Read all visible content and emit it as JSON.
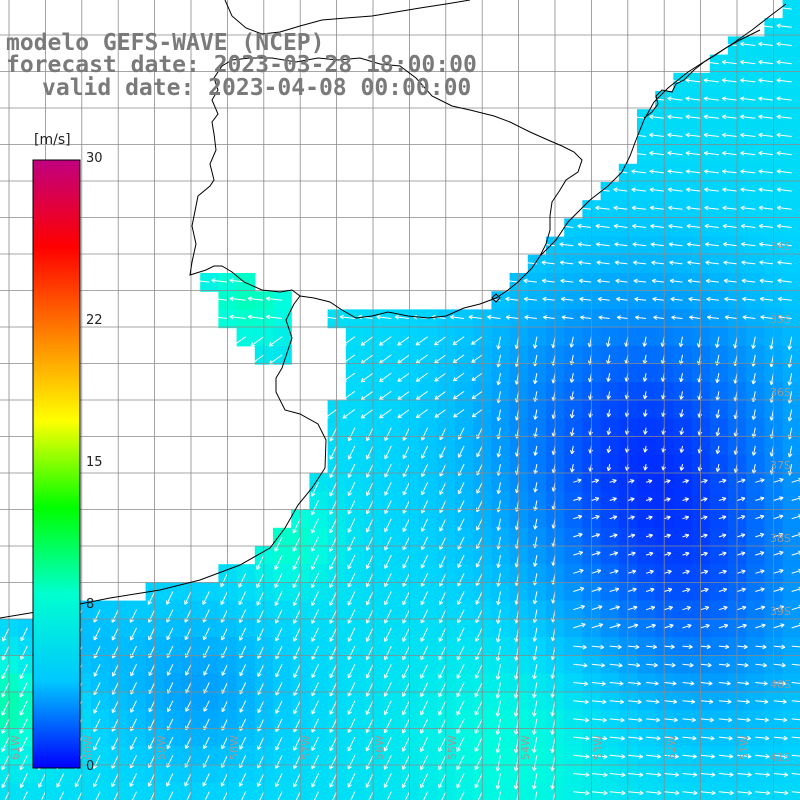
{
  "title": {
    "line1": "modelo GEFS-WAVE (NCEP)",
    "line2": "forecast date: 2023-03-28 18:00:00",
    "line3": "valid date: 2023-04-08 00:00:00"
  },
  "colorbar": {
    "unit": "[m/s]",
    "ticks": [
      "30",
      "22",
      "15",
      "8",
      "0"
    ],
    "tick_values": [
      30,
      22,
      15,
      8,
      0
    ],
    "colors": [
      "#0000ff",
      "#00c8ff",
      "#00ffd0",
      "#00ff00",
      "#ffff00",
      "#ff8000",
      "#ff0000",
      "#c00080"
    ]
  },
  "latitude_labels": [
    "34S",
    "35S",
    "36S",
    "37S",
    "38S",
    "39S",
    "40S",
    "41S"
  ],
  "longitude_labels": [
    "61W",
    "60W",
    "59W",
    "58W",
    "57W",
    "56W",
    "55W",
    "54W",
    "53W",
    "52W",
    "51W"
  ],
  "map_colors": {
    "land": "#ffffff",
    "coast": "#000000",
    "grid": "#808080",
    "vectors": "#ffffff"
  }
}
